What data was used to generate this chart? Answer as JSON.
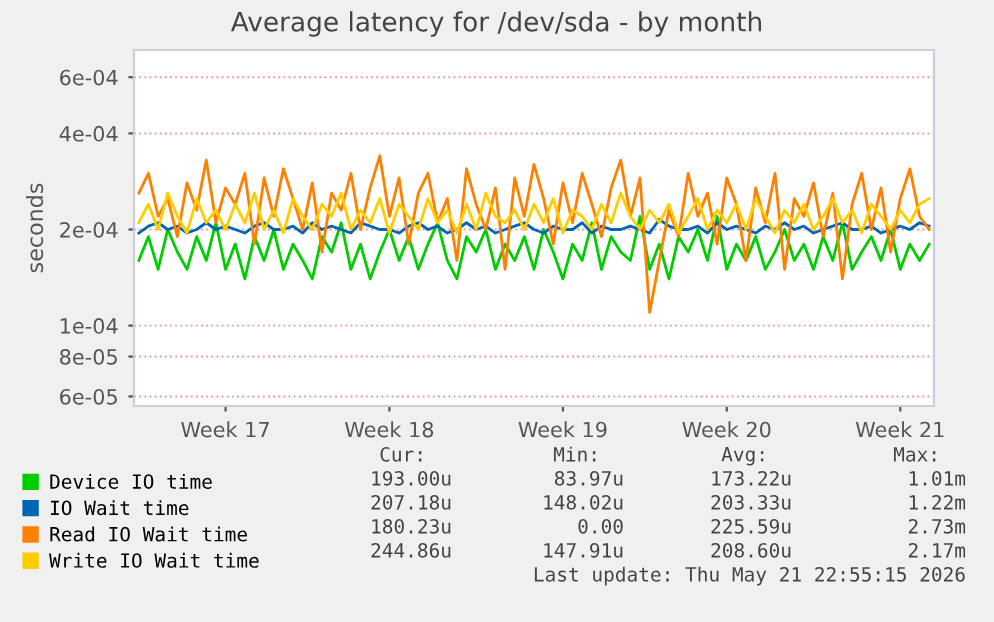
{
  "chart_data": {
    "type": "line",
    "title": "Average latency for /dev/sda - by month",
    "ylabel": "seconds",
    "log": "y",
    "grid": "y",
    "legend": "bottom",
    "marker": "none",
    "line_style": "solid",
    "categories": [
      null,
      null,
      null,
      null,
      null,
      null,
      null,
      null,
      null,
      "Week 17",
      null,
      null,
      null,
      null,
      null,
      null,
      null,
      null,
      null,
      null,
      null,
      null,
      null,
      null,
      null,
      null,
      "Week 18",
      null,
      null,
      null,
      null,
      null,
      null,
      null,
      null,
      null,
      null,
      null,
      null,
      null,
      null,
      null,
      null,
      null,
      "Week 19",
      null,
      null,
      null,
      null,
      null,
      null,
      null,
      null,
      null,
      null,
      null,
      null,
      null,
      null,
      null,
      null,
      "Week 20",
      null,
      null,
      null,
      null,
      null,
      null,
      null,
      null,
      null,
      null,
      null,
      null,
      null,
      null,
      null,
      null,
      null,
      "Week 21",
      null,
      null,
      null
    ],
    "ylim": [
      5.6e-05,
      0.00073
    ],
    "yticks": [
      {
        "value": 6e-05,
        "label": "6e-05"
      },
      {
        "value": 8e-05,
        "label": "8e-05"
      },
      {
        "value": 0.0001,
        "label": "1e-04"
      },
      {
        "value": 0.0002,
        "label": "2e-04"
      },
      {
        "value": 0.0004,
        "label": "4e-04"
      },
      {
        "value": 0.0006,
        "label": "6e-04"
      }
    ],
    "series": [
      {
        "name": "Device IO time",
        "color": "#00cc00",
        "values": [
          0.00016,
          0.00019,
          0.00015,
          0.0002,
          0.00017,
          0.00015,
          0.00019,
          0.00016,
          0.00021,
          0.00015,
          0.00018,
          0.00014,
          0.00019,
          0.00016,
          0.0002,
          0.00015,
          0.00018,
          0.00016,
          0.00014,
          0.00019,
          0.00017,
          0.00021,
          0.00015,
          0.00018,
          0.00014,
          0.00017,
          0.0002,
          0.00016,
          0.00019,
          0.00015,
          0.00018,
          0.00021,
          0.00016,
          0.00014,
          0.00019,
          0.00017,
          0.0002,
          0.00015,
          0.00018,
          0.00016,
          0.00019,
          0.00015,
          0.0002,
          0.00017,
          0.00014,
          0.00018,
          0.00016,
          0.00021,
          0.00015,
          0.00019,
          0.00017,
          0.00016,
          0.00022,
          0.00015,
          0.00018,
          0.00014,
          0.00019,
          0.00017,
          0.0002,
          0.00016,
          0.00022,
          0.00015,
          0.00018,
          0.00016,
          0.00019,
          0.00015,
          0.00017,
          0.0002,
          0.00016,
          0.00018,
          0.00015,
          0.00019,
          0.00016,
          0.00021,
          0.00015,
          0.00017,
          0.00019,
          0.00016,
          0.0002,
          0.00015,
          0.00018,
          0.00016,
          0.00018
        ]
      },
      {
        "name": "IO Wait time",
        "color": "#0066b3",
        "values": [
          0.000195,
          0.000205,
          0.00021,
          0.0002,
          0.000205,
          0.000195,
          0.0002,
          0.00021,
          0.0002,
          0.000205,
          0.0002,
          0.000195,
          0.000205,
          0.00021,
          0.0002,
          0.0002,
          0.000205,
          0.000195,
          0.00021,
          0.0002,
          0.000205,
          0.0002,
          0.000195,
          0.00021,
          0.000205,
          0.0002,
          0.0002,
          0.000195,
          0.000205,
          0.00021,
          0.0002,
          0.000205,
          0.000195,
          0.0002,
          0.00021,
          0.0002,
          0.000205,
          0.000195,
          0.0002,
          0.000205,
          0.00021,
          0.0002,
          0.000195,
          0.000205,
          0.0002,
          0.0002,
          0.00021,
          0.000195,
          0.000205,
          0.0002,
          0.0002,
          0.000205,
          0.0002,
          0.000195,
          0.000215,
          0.000205,
          0.0002,
          0.0002,
          0.000205,
          0.000195,
          0.00021,
          0.0002,
          0.000205,
          0.0002,
          0.000195,
          0.000205,
          0.0002,
          0.00021,
          0.0002,
          0.000205,
          0.000195,
          0.0002,
          0.000205,
          0.00021,
          0.0002,
          0.0002,
          0.000205,
          0.000195,
          0.0002,
          0.000205,
          0.0002,
          0.00021,
          0.000205
        ]
      },
      {
        "name": "Read IO Wait time",
        "color": "#ff8000",
        "values": [
          0.00026,
          0.0003,
          0.00022,
          0.00025,
          0.00019,
          0.00028,
          0.00023,
          0.00033,
          0.00021,
          0.00027,
          0.00024,
          0.0003,
          0.00018,
          0.00029,
          0.00022,
          0.00031,
          0.00025,
          0.0002,
          0.00028,
          0.00017,
          0.00026,
          0.00023,
          0.0003,
          0.0002,
          0.00027,
          0.00034,
          0.00022,
          0.00029,
          0.00018,
          0.00026,
          0.0003,
          0.00021,
          0.00025,
          0.00016,
          0.00031,
          0.00024,
          0.0002,
          0.00027,
          0.00015,
          0.00029,
          0.00022,
          0.00032,
          0.00025,
          0.00018,
          0.00028,
          0.00021,
          0.0003,
          0.00024,
          0.00019,
          0.00027,
          0.00033,
          0.00022,
          0.00029,
          0.00011,
          0.00016,
          0.00023,
          0.00019,
          0.0003,
          0.00022,
          0.00026,
          0.00018,
          0.00029,
          0.00024,
          0.00016,
          0.00027,
          0.00021,
          0.0003,
          0.00015,
          0.00025,
          0.00022,
          0.00028,
          0.00019,
          0.00026,
          0.00014,
          0.00024,
          0.0003,
          0.0002,
          0.00027,
          0.00017,
          0.00025,
          0.00031,
          0.00022,
          0.0002
        ]
      },
      {
        "name": "Write IO Wait time",
        "color": "#ffcc00",
        "values": [
          0.00021,
          0.00024,
          0.0002,
          0.00026,
          0.00022,
          0.000195,
          0.00025,
          0.00021,
          0.00023,
          0.0002,
          0.00024,
          0.00021,
          0.00026,
          0.0002,
          0.00023,
          0.000195,
          0.00025,
          0.00022,
          0.0002,
          0.00024,
          0.00022,
          0.00026,
          0.0002,
          0.00023,
          0.00021,
          0.00025,
          0.000195,
          0.00024,
          0.00022,
          0.0002,
          0.00025,
          0.00021,
          0.00023,
          0.000195,
          0.00024,
          0.0002,
          0.00026,
          0.00022,
          0.00021,
          0.00023,
          0.0002,
          0.00024,
          0.00021,
          0.00025,
          0.000195,
          0.00023,
          0.00022,
          0.0002,
          0.00024,
          0.00021,
          0.00026,
          0.00022,
          0.0002,
          0.00023,
          0.00021,
          0.00024,
          0.000195,
          0.00022,
          0.00025,
          0.0002,
          0.00023,
          0.00021,
          0.00024,
          0.0002,
          0.00025,
          0.00022,
          0.000195,
          0.00023,
          0.00021,
          0.00024,
          0.0002,
          0.00022,
          0.00025,
          0.00021,
          0.00023,
          0.000195,
          0.00024,
          0.00022,
          0.0002,
          0.00023,
          0.00021,
          0.00024,
          0.00025
        ]
      }
    ],
    "annotations": [
      "Cur:",
      "Min:",
      "Avg:",
      "Max:",
      "193.00u",
      "83.97u",
      "173.22u",
      "1.01m",
      "207.18u",
      "148.02u",
      "203.33u",
      "1.22m",
      "180.23u",
      "0.00",
      "225.59u",
      "2.73m",
      "244.86u",
      "147.91u",
      "208.60u",
      "2.17m",
      "Last update: Thu May 21 22:55:15 2026"
    ]
  }
}
